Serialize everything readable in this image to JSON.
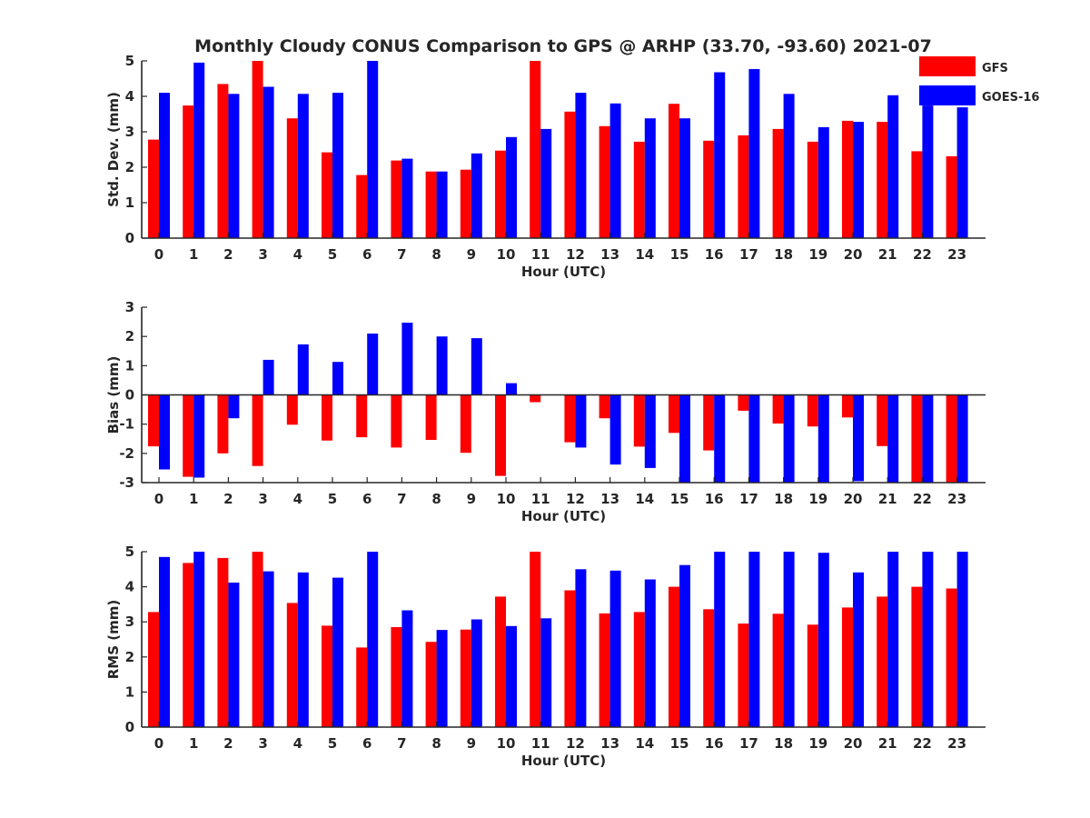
{
  "figure": {
    "title": "Monthly Cloudy CONUS Comparison to GPS @ ARHP (33.70, -93.60) 2021-07"
  },
  "legend": {
    "placement": "top-right",
    "entries": [
      {
        "label": "GFS",
        "color": "#ff0000"
      },
      {
        "label": "GOES-16",
        "color": "#0000ff"
      }
    ]
  },
  "chart_data": [
    {
      "type": "bar",
      "ylabel": "Std. Dev. (mm)",
      "xlabel": "Hour (UTC)",
      "ylim": [
        0,
        5
      ],
      "yticks": [
        0,
        1,
        2,
        3,
        4,
        5
      ],
      "categories": [
        "0",
        "1",
        "2",
        "3",
        "4",
        "5",
        "6",
        "7",
        "8",
        "9",
        "10",
        "11",
        "12",
        "13",
        "14",
        "15",
        "16",
        "17",
        "18",
        "19",
        "20",
        "21",
        "22",
        "23"
      ],
      "series": [
        {
          "name": "GFS",
          "color": "#ff0000",
          "values": [
            2.78,
            3.74,
            4.35,
            5.0,
            3.38,
            2.42,
            1.78,
            2.19,
            1.88,
            1.93,
            2.47,
            5.0,
            3.57,
            3.16,
            2.72,
            3.79,
            2.75,
            2.9,
            3.08,
            2.72,
            3.31,
            3.28,
            2.45,
            2.31
          ]
        },
        {
          "name": "GOES-16",
          "color": "#0000ff",
          "values": [
            4.1,
            4.95,
            4.07,
            4.27,
            4.07,
            4.1,
            5.0,
            2.24,
            1.88,
            2.39,
            2.85,
            3.08,
            4.1,
            3.8,
            3.38,
            3.38,
            4.68,
            4.77,
            4.07,
            3.13,
            3.28,
            4.03,
            3.74,
            3.69
          ]
        }
      ]
    },
    {
      "type": "bar",
      "ylabel": "Bias (mm)",
      "xlabel": "Hour (UTC)",
      "ylim": [
        -3,
        3
      ],
      "yticks": [
        -3,
        -2,
        -1,
        0,
        1,
        2,
        3
      ],
      "categories": [
        "0",
        "1",
        "2",
        "3",
        "4",
        "5",
        "6",
        "7",
        "8",
        "9",
        "10",
        "11",
        "12",
        "13",
        "14",
        "15",
        "16",
        "17",
        "18",
        "19",
        "20",
        "21",
        "22",
        "23"
      ],
      "series": [
        {
          "name": "GFS",
          "color": "#ff0000",
          "values": [
            -1.76,
            -2.8,
            -2.0,
            -2.43,
            -1.02,
            -1.56,
            -1.45,
            -1.8,
            -1.54,
            -1.98,
            -2.77,
            -0.25,
            -1.62,
            -0.8,
            -1.77,
            -1.3,
            -1.9,
            -0.54,
            -0.98,
            -1.08,
            -0.77,
            -1.75,
            -3.0,
            -3.0
          ]
        },
        {
          "name": "GOES-16",
          "color": "#0000ff",
          "values": [
            -2.55,
            -2.83,
            -0.8,
            1.2,
            1.73,
            1.13,
            2.1,
            2.47,
            2.0,
            1.94,
            0.4,
            0.0,
            -1.8,
            -2.38,
            -2.5,
            -3.0,
            -3.0,
            -3.0,
            -3.0,
            -3.0,
            -2.95,
            -3.0,
            -3.0,
            -3.0
          ]
        }
      ]
    },
    {
      "type": "bar",
      "ylabel": "RMS (mm)",
      "xlabel": "Hour (UTC)",
      "ylim": [
        0,
        5
      ],
      "yticks": [
        0,
        1,
        2,
        3,
        4,
        5
      ],
      "categories": [
        "0",
        "1",
        "2",
        "3",
        "4",
        "5",
        "6",
        "7",
        "8",
        "9",
        "10",
        "11",
        "12",
        "13",
        "14",
        "15",
        "16",
        "17",
        "18",
        "19",
        "20",
        "21",
        "22",
        "23"
      ],
      "series": [
        {
          "name": "GFS",
          "color": "#ff0000",
          "values": [
            3.28,
            4.68,
            4.82,
            5.0,
            3.54,
            2.89,
            2.27,
            2.85,
            2.43,
            2.78,
            3.72,
            5.0,
            3.9,
            3.24,
            3.28,
            4.0,
            3.36,
            2.95,
            3.23,
            2.92,
            3.41,
            3.72,
            4.0,
            3.95
          ]
        },
        {
          "name": "GOES-16",
          "color": "#0000ff",
          "values": [
            4.85,
            5.0,
            4.12,
            4.44,
            4.41,
            4.26,
            5.0,
            3.33,
            2.77,
            3.07,
            2.88,
            3.1,
            4.5,
            4.46,
            4.21,
            4.62,
            5.0,
            5.0,
            5.0,
            4.97,
            4.41,
            5.0,
            5.0,
            5.0
          ]
        }
      ]
    }
  ]
}
